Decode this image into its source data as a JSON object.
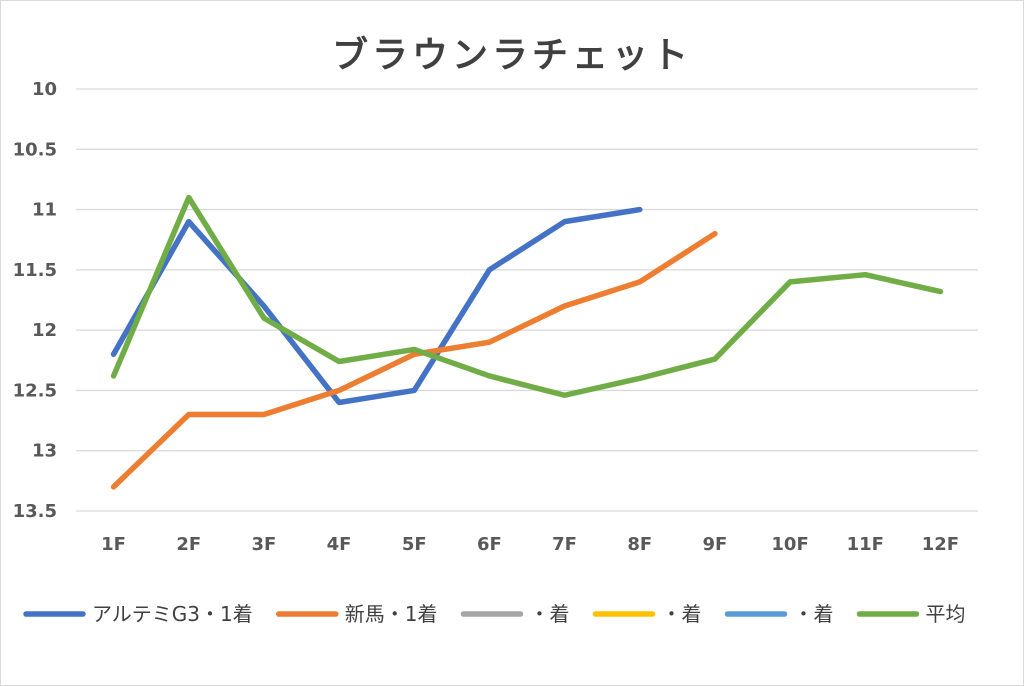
{
  "chart_data": {
    "type": "line",
    "title": "ブラウンラチェット",
    "xlabel": "",
    "ylabel": "",
    "y_reversed": true,
    "ylim": [
      10,
      13.5
    ],
    "yticks": [
      "10",
      "10.5",
      "11",
      "11.5",
      "12",
      "12.5",
      "13",
      "13.5"
    ],
    "categories": [
      "1F",
      "2F",
      "3F",
      "4F",
      "5F",
      "6F",
      "7F",
      "8F",
      "9F",
      "10F",
      "11F",
      "12F"
    ],
    "grid": true,
    "legend_position": "bottom",
    "series": [
      {
        "name": "アルテミG3・1着",
        "color": "#4472C4",
        "values": [
          12.2,
          11.1,
          11.8,
          12.6,
          12.5,
          11.5,
          11.1,
          11.0,
          null,
          null,
          null,
          null
        ]
      },
      {
        "name": "新馬・1着",
        "color": "#ED7D31",
        "values": [
          13.3,
          12.7,
          12.7,
          12.5,
          12.2,
          12.1,
          11.8,
          11.6,
          11.2,
          null,
          null,
          null
        ]
      },
      {
        "name": "・着",
        "color": "#A5A5A5",
        "values": [
          null,
          null,
          null,
          null,
          null,
          null,
          null,
          null,
          null,
          null,
          null,
          null
        ]
      },
      {
        "name": "・着",
        "color": "#FFC000",
        "values": [
          null,
          null,
          null,
          null,
          null,
          null,
          null,
          null,
          null,
          null,
          null,
          null
        ]
      },
      {
        "name": "・着",
        "color": "#5B9BD5",
        "values": [
          null,
          null,
          null,
          null,
          null,
          null,
          null,
          null,
          null,
          null,
          null,
          null
        ]
      },
      {
        "name": "平均",
        "color": "#70AD47",
        "values": [
          12.38,
          10.9,
          11.9,
          12.26,
          12.16,
          12.38,
          12.54,
          12.4,
          12.24,
          11.6,
          11.54,
          11.68
        ]
      }
    ]
  }
}
